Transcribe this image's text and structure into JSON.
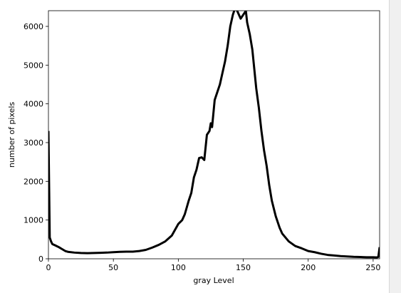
{
  "chart_data": {
    "type": "line",
    "xlabel": "gray Level",
    "ylabel": "number of pixels",
    "x": [
      0,
      1,
      2,
      3,
      5,
      8,
      10,
      13,
      15,
      20,
      25,
      30,
      35,
      40,
      45,
      50,
      55,
      60,
      65,
      70,
      75,
      80,
      85,
      90,
      95,
      100,
      103,
      105,
      108,
      110,
      112,
      114,
      116,
      118,
      120,
      122,
      124,
      125,
      126,
      128,
      130,
      132,
      134,
      136,
      138,
      140,
      142,
      144,
      146,
      148,
      150,
      152,
      153,
      155,
      157,
      160,
      162,
      164,
      166,
      168,
      170,
      172,
      175,
      178,
      180,
      185,
      190,
      195,
      200,
      205,
      210,
      215,
      220,
      225,
      230,
      235,
      240,
      245,
      250,
      253,
      254,
      255
    ],
    "values": [
      3300,
      550,
      450,
      380,
      350,
      300,
      260,
      200,
      180,
      160,
      150,
      145,
      150,
      155,
      160,
      170,
      180,
      185,
      185,
      200,
      230,
      290,
      360,
      450,
      600,
      900,
      1000,
      1150,
      1500,
      1700,
      2100,
      2300,
      2600,
      2620,
      2550,
      3200,
      3300,
      3500,
      3400,
      4100,
      4300,
      4500,
      4800,
      5100,
      5500,
      6000,
      6300,
      6500,
      6350,
      6200,
      6300,
      6400,
      6100,
      5800,
      5400,
      4400,
      3900,
      3300,
      2800,
      2400,
      1900,
      1500,
      1100,
      800,
      650,
      450,
      330,
      270,
      200,
      170,
      130,
      100,
      85,
      70,
      60,
      50,
      45,
      40,
      40,
      35,
      50,
      300
    ],
    "color": "#000000",
    "xlim": [
      0,
      255
    ],
    "xticks": [
      0,
      50,
      100,
      150,
      200,
      250
    ],
    "ylim": [
      0,
      6405
    ],
    "yticks": [
      0,
      1000,
      2000,
      3000,
      4000,
      5000,
      6000
    ]
  }
}
